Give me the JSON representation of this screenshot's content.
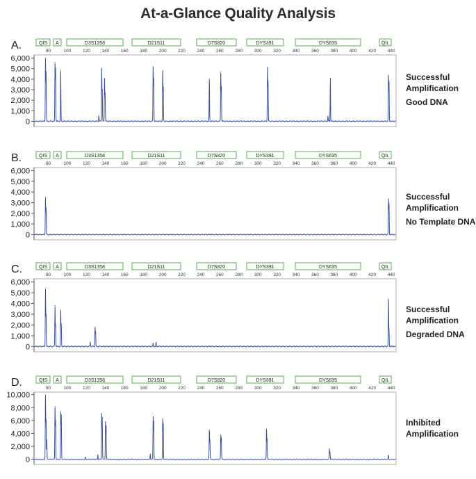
{
  "title": "At-a-Glance Quality Analysis",
  "colors": {
    "trace": "#3a4fa0",
    "marker_border": "#56b04a",
    "axis": "#555555",
    "grid": "#cccccc"
  },
  "chart_data": [
    {
      "type": "line",
      "panel": "A.",
      "markers": [
        "QIS",
        "A",
        "D3S1358",
        "D21S11",
        "D7S820",
        "DYS391",
        "DYS635",
        "QIL"
      ],
      "x_ticks": [
        "80",
        "100",
        "120",
        "140",
        "160",
        "180",
        "200",
        "220",
        "240",
        "260",
        "280",
        "300",
        "320",
        "340",
        "360",
        "380",
        "400",
        "420",
        "440"
      ],
      "xlim": [
        65,
        445
      ],
      "y_ticks": [
        "0",
        "1,000",
        "2,000",
        "3,000",
        "4,000",
        "5,000",
        "6,000"
      ],
      "ylim": [
        -500,
        6300
      ],
      "peaks": [
        {
          "x": 77,
          "y": 6000
        },
        {
          "x": 77.6,
          "y": 4700
        },
        {
          "x": 87,
          "y": 5600
        },
        {
          "x": 87.6,
          "y": 5000
        },
        {
          "x": 93,
          "y": 4900
        },
        {
          "x": 133,
          "y": 500
        },
        {
          "x": 136,
          "y": 5000
        },
        {
          "x": 136.6,
          "y": 3000
        },
        {
          "x": 139,
          "y": 4000
        },
        {
          "x": 139.6,
          "y": 2700
        },
        {
          "x": 190,
          "y": 5100
        },
        {
          "x": 190.6,
          "y": 4000
        },
        {
          "x": 200,
          "y": 4800
        },
        {
          "x": 200.6,
          "y": 3300
        },
        {
          "x": 249,
          "y": 4000
        },
        {
          "x": 261,
          "y": 4700
        },
        {
          "x": 261.6,
          "y": 3300
        },
        {
          "x": 310,
          "y": 5100
        },
        {
          "x": 310.6,
          "y": 3800
        },
        {
          "x": 376,
          "y": 4100
        },
        {
          "x": 373.5,
          "y": 500
        },
        {
          "x": 437,
          "y": 4300
        },
        {
          "x": 437.6,
          "y": 3800
        }
      ],
      "notes": [
        "Successful",
        "Amplification",
        "Good DNA"
      ]
    },
    {
      "type": "line",
      "panel": "B.",
      "markers": [
        "QIS",
        "A",
        "D3S1358",
        "D21S11",
        "D7S820",
        "DYS391",
        "DYS635",
        "QIL"
      ],
      "x_ticks": [
        "80",
        "100",
        "120",
        "140",
        "160",
        "180",
        "200",
        "220",
        "240",
        "260",
        "280",
        "300",
        "320",
        "340",
        "360",
        "380",
        "400",
        "420",
        "440"
      ],
      "xlim": [
        65,
        445
      ],
      "y_ticks": [
        "0",
        "1,000",
        "2,000",
        "3,000",
        "4,000",
        "5,000",
        "6,000"
      ],
      "ylim": [
        -500,
        6300
      ],
      "peaks": [
        {
          "x": 77,
          "y": 3500
        },
        {
          "x": 77.6,
          "y": 2500
        },
        {
          "x": 437,
          "y": 3300
        },
        {
          "x": 437.6,
          "y": 2900
        }
      ],
      "notes": [
        "Successful",
        "Amplification",
        "No Template DNA"
      ]
    },
    {
      "type": "line",
      "panel": "C.",
      "markers": [
        "QIS",
        "A",
        "D3S1358",
        "D21S11",
        "D7S820",
        "DYS391",
        "DYS635",
        "QIL"
      ],
      "x_ticks": [
        "80",
        "100",
        "120",
        "140",
        "160",
        "180",
        "200",
        "220",
        "240",
        "260",
        "280",
        "300",
        "320",
        "340",
        "360",
        "380",
        "400",
        "420",
        "440"
      ],
      "xlim": [
        65,
        445
      ],
      "y_ticks": [
        "0",
        "1,000",
        "2,000",
        "3,000",
        "4,000",
        "5,000",
        "6,000"
      ],
      "ylim": [
        -500,
        6300
      ],
      "peaks": [
        {
          "x": 77,
          "y": 5400
        },
        {
          "x": 77.6,
          "y": 3000
        },
        {
          "x": 87,
          "y": 3800
        },
        {
          "x": 87.6,
          "y": 2000
        },
        {
          "x": 93,
          "y": 3400
        },
        {
          "x": 93.6,
          "y": 2000
        },
        {
          "x": 124,
          "y": 400
        },
        {
          "x": 129,
          "y": 1800
        },
        {
          "x": 129.6,
          "y": 1400
        },
        {
          "x": 190,
          "y": 300
        },
        {
          "x": 193,
          "y": 350
        },
        {
          "x": 437,
          "y": 4400
        },
        {
          "x": 437.6,
          "y": 1500
        }
      ],
      "notes": [
        "Successful",
        "Amplification",
        "Degraded DNA"
      ]
    },
    {
      "type": "line",
      "panel": "D.",
      "markers": [
        "QIS",
        "A",
        "D3S1358",
        "D21S11",
        "D7S820",
        "DYS391",
        "DYS635",
        "QIL"
      ],
      "x_ticks": [
        "80",
        "100",
        "120",
        "140",
        "160",
        "180",
        "200",
        "220",
        "240",
        "260",
        "280",
        "300",
        "320",
        "340",
        "360",
        "380",
        "400",
        "420",
        "440"
      ],
      "xlim": [
        65,
        445
      ],
      "y_ticks": [
        "0",
        "2,000",
        "4,000",
        "6,000",
        "8,000",
        "10,000"
      ],
      "ylim": [
        -800,
        10400
      ],
      "peaks": [
        {
          "x": 77,
          "y": 10000
        },
        {
          "x": 77.6,
          "y": 6200
        },
        {
          "x": 78.4,
          "y": 3000
        },
        {
          "x": 87,
          "y": 8200
        },
        {
          "x": 87.6,
          "y": 6000
        },
        {
          "x": 93,
          "y": 7400
        },
        {
          "x": 93.6,
          "y": 6800
        },
        {
          "x": 119,
          "y": 300
        },
        {
          "x": 132,
          "y": 700
        },
        {
          "x": 136,
          "y": 7000
        },
        {
          "x": 136.6,
          "y": 6400
        },
        {
          "x": 140,
          "y": 5800
        },
        {
          "x": 140.6,
          "y": 5200
        },
        {
          "x": 187,
          "y": 800
        },
        {
          "x": 190,
          "y": 6500
        },
        {
          "x": 190.6,
          "y": 5800
        },
        {
          "x": 200,
          "y": 6200
        },
        {
          "x": 200.6,
          "y": 5500
        },
        {
          "x": 249,
          "y": 4500
        },
        {
          "x": 249.6,
          "y": 3000
        },
        {
          "x": 261,
          "y": 3800
        },
        {
          "x": 261.6,
          "y": 3300
        },
        {
          "x": 309,
          "y": 4700
        },
        {
          "x": 309.6,
          "y": 3200
        },
        {
          "x": 375,
          "y": 1600
        },
        {
          "x": 375.6,
          "y": 1100
        },
        {
          "x": 437,
          "y": 600
        }
      ],
      "notes": [
        "Inhibited",
        "Amplification"
      ]
    }
  ]
}
